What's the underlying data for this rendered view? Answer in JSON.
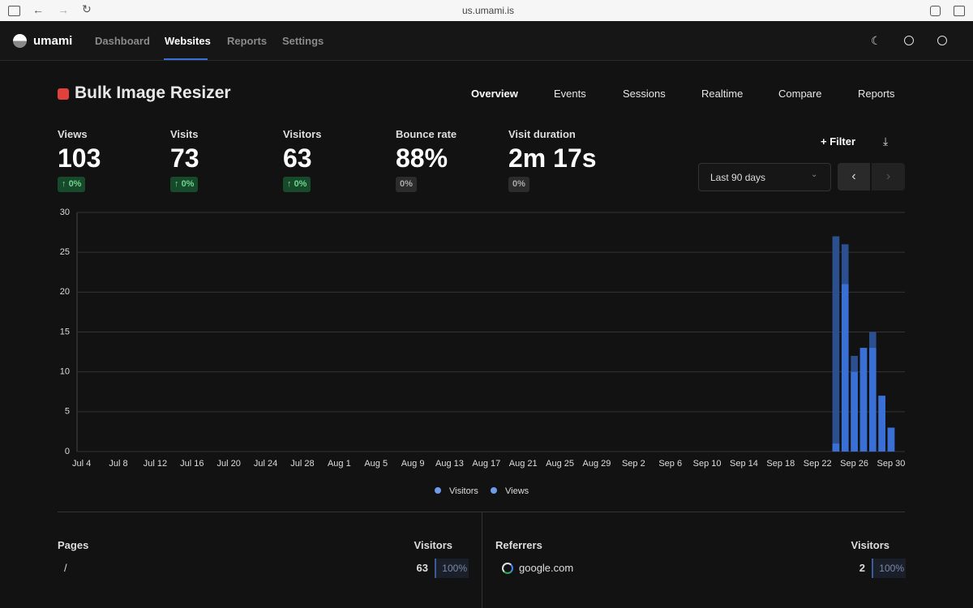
{
  "browser": {
    "url": "us.umami.is"
  },
  "nav": {
    "brand": "umami",
    "items": [
      "Dashboard",
      "Websites",
      "Reports",
      "Settings"
    ]
  },
  "website": {
    "name": "Bulk Image Resizer",
    "tabs": [
      "Overview",
      "Events",
      "Sessions",
      "Realtime",
      "Compare",
      "Reports"
    ]
  },
  "metrics": [
    {
      "label": "Views",
      "value": "103",
      "change": "0%"
    },
    {
      "label": "Visits",
      "value": "73",
      "change": "0%"
    },
    {
      "label": "Visitors",
      "value": "63",
      "change": "0%"
    },
    {
      "label": "Bounce rate",
      "value": "88%",
      "change": "0%"
    },
    {
      "label": "Visit duration",
      "value": "2m 17s",
      "change": "0%"
    }
  ],
  "controls": {
    "filter": "Filter",
    "range": "Last 90 days"
  },
  "chart_data": {
    "type": "bar",
    "categories": [
      "Jul 4",
      null,
      null,
      null,
      "Jul 8",
      null,
      null,
      null,
      "Jul 12",
      null,
      null,
      null,
      "Jul 16",
      null,
      null,
      null,
      "Jul 20",
      null,
      null,
      null,
      "Jul 24",
      null,
      null,
      null,
      "Jul 28",
      null,
      null,
      null,
      "Aug 1",
      null,
      null,
      null,
      "Aug 5",
      null,
      null,
      null,
      "Aug 9",
      null,
      null,
      null,
      "Aug 13",
      null,
      null,
      null,
      "Aug 17",
      null,
      null,
      null,
      "Aug 21",
      null,
      null,
      null,
      "Aug 25",
      null,
      null,
      null,
      "Aug 29",
      null,
      null,
      null,
      "Sep 2",
      null,
      null,
      null,
      "Sep 6",
      null,
      null,
      null,
      "Sep 10",
      null,
      null,
      null,
      "Sep 14",
      null,
      null,
      null,
      "Sep 18",
      null,
      null,
      null,
      "Sep 22",
      null,
      null,
      null,
      "Sep 26",
      null,
      null,
      null,
      "Sep 30",
      null
    ],
    "series": [
      {
        "name": "Views",
        "color": "#2c4f8f",
        "values": [
          0,
          0,
          0,
          0,
          0,
          0,
          0,
          0,
          0,
          0,
          0,
          0,
          0,
          0,
          0,
          0,
          0,
          0,
          0,
          0,
          0,
          0,
          0,
          0,
          0,
          0,
          0,
          0,
          0,
          0,
          0,
          0,
          0,
          0,
          0,
          0,
          0,
          0,
          0,
          0,
          0,
          0,
          0,
          0,
          0,
          0,
          0,
          0,
          0,
          0,
          0,
          0,
          0,
          0,
          0,
          0,
          0,
          0,
          0,
          0,
          0,
          0,
          0,
          0,
          0,
          0,
          0,
          0,
          0,
          0,
          0,
          0,
          0,
          0,
          0,
          0,
          0,
          0,
          0,
          0,
          0,
          0,
          27,
          26,
          12,
          13,
          15,
          7,
          3,
          0
        ]
      },
      {
        "name": "Visitors",
        "color": "#3a6fd6",
        "values": [
          0,
          0,
          0,
          0,
          0,
          0,
          0,
          0,
          0,
          0,
          0,
          0,
          0,
          0,
          0,
          0,
          0,
          0,
          0,
          0,
          0,
          0,
          0,
          0,
          0,
          0,
          0,
          0,
          0,
          0,
          0,
          0,
          0,
          0,
          0,
          0,
          0,
          0,
          0,
          0,
          0,
          0,
          0,
          0,
          0,
          0,
          0,
          0,
          0,
          0,
          0,
          0,
          0,
          0,
          0,
          0,
          0,
          0,
          0,
          0,
          0,
          0,
          0,
          0,
          0,
          0,
          0,
          0,
          0,
          0,
          0,
          0,
          0,
          0,
          0,
          0,
          0,
          0,
          0,
          0,
          0,
          0,
          1,
          21,
          10,
          13,
          13,
          7,
          3,
          0
        ]
      }
    ],
    "ylim": [
      0,
      30
    ],
    "yticks": [
      0,
      5,
      10,
      15,
      20,
      25,
      30
    ],
    "grid": true
  },
  "pages": {
    "title": "Pages",
    "column": "Visitors",
    "rows": [
      [
        "/",
        "63",
        "100%"
      ]
    ]
  },
  "referrers": {
    "title": "Referrers",
    "column": "Visitors",
    "rows": [
      [
        "google.com",
        "2",
        "100%"
      ]
    ]
  }
}
